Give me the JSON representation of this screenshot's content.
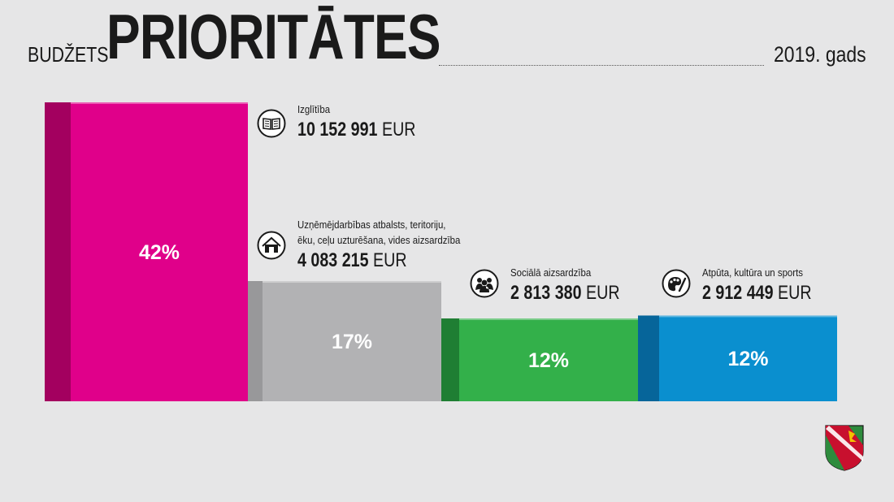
{
  "header": {
    "small_title": "BUDŽETS",
    "big_title": "PRIORITĀTES",
    "year": "2019. gads"
  },
  "chart_data": {
    "type": "bar",
    "categories": [
      "Izglītība",
      "Uzņēmējdarbības atbalsts, teritoriju, ēku, ceļu uzturēšana, vides aizsardzība",
      "Sociālā aizsardzība",
      "Atpūta, kultūra un sports"
    ],
    "values": [
      10152991,
      4083215,
      2813380,
      2912449
    ],
    "percent_labels": [
      "42%",
      "17%",
      "12%",
      "12%"
    ],
    "colors": [
      "#e0008a",
      "#b2b2b4",
      "#33b04a",
      "#0a8fcf"
    ],
    "shade_colors": [
      "#a3005f",
      "#98989a",
      "#1f7e33",
      "#06659a"
    ],
    "unit": "EUR",
    "icons": [
      "book-icon",
      "house-icon",
      "people-icon",
      "palette-icon"
    ]
  },
  "categories": [
    {
      "label_lines": [
        "Izglītība"
      ],
      "amount": "10 152 991",
      "unit": "EUR"
    },
    {
      "label_lines": [
        "Uzņēmējdarbības atbalsts, teritoriju,",
        "ēku, ceļu uzturēšana, vides aizsardzība"
      ],
      "amount": "4 083 215",
      "unit": "EUR"
    },
    {
      "label_lines": [
        "Sociālā aizsardzība"
      ],
      "amount": "2 813 380",
      "unit": "EUR"
    },
    {
      "label_lines": [
        "Atpūta, kultūra un sports"
      ],
      "amount": "2 912 449",
      "unit": "EUR"
    }
  ],
  "logo": {
    "name": "coat-of-arms",
    "colors": [
      "#c8102e",
      "#2e8b3d",
      "#ffffff"
    ]
  }
}
